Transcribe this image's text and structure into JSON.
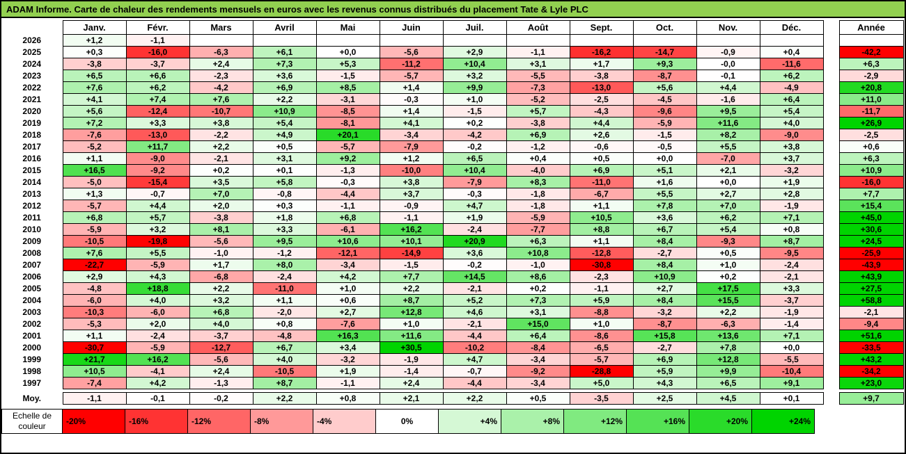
{
  "title": "ADAM Informe. Carte de chaleur des rendements mensuels en euros avec les revenus connus distribués du placement Tate & Lyle PLC",
  "colors": {
    "title_background": "#92d050",
    "scale_negative": "#ff0000",
    "scale_zero": "#ffffff",
    "scale_positive": "#00d400",
    "border": "#000000"
  },
  "chart_data": {
    "type": "heatmap",
    "title": "ADAM Informe. Carte de chaleur des rendements mensuels en euros avec les revenus connus distribués du placement Tate & Lyle PLC",
    "columns": [
      "Janv.",
      "Févr.",
      "Mars",
      "Avril",
      "Mai",
      "Juin",
      "Juil.",
      "Août",
      "Sept.",
      "Oct.",
      "Nov.",
      "Déc."
    ],
    "annual_header": "Année",
    "value_format": "signed, one decimal, comma separator, percent returns",
    "rows": [
      {
        "label": "2026",
        "cells": [
          "+1,2",
          "-1,1",
          "",
          "",
          "",
          "",
          "",
          "",
          "",
          "",
          "",
          ""
        ],
        "annual": ""
      },
      {
        "label": "2025",
        "cells": [
          "+0,3",
          "-16,0",
          "-6,3",
          "+6,1",
          "+0,0",
          "-5,6",
          "+2,9",
          "-1,1",
          "-16,2",
          "-14,7",
          "-0,9",
          "+0,4"
        ],
        "annual": "-42,2"
      },
      {
        "label": "2024",
        "cells": [
          "-3,8",
          "-3,7",
          "+2,4",
          "+7,3",
          "+5,3",
          "-11,2",
          "+10,4",
          "+3,1",
          "+1,7",
          "+9,3",
          "-0,0",
          "-11,6"
        ],
        "annual": "+6,3"
      },
      {
        "label": "2023",
        "cells": [
          "+6,5",
          "+6,6",
          "-2,3",
          "+3,6",
          "-1,5",
          "-5,7",
          "+3,2",
          "-5,5",
          "-3,8",
          "-8,7",
          "-0,1",
          "+6,2"
        ],
        "annual": "-2,9"
      },
      {
        "label": "2022",
        "cells": [
          "+7,6",
          "+6,2",
          "-4,2",
          "+6,9",
          "+8,5",
          "+1,4",
          "+9,9",
          "-7,3",
          "-13,0",
          "+5,6",
          "+4,4",
          "-4,9"
        ],
        "annual": "+20,8"
      },
      {
        "label": "2021",
        "cells": [
          "+4,1",
          "+7,4",
          "+7,6",
          "+2,2",
          "-3,1",
          "-0,3",
          "+1,0",
          "-5,2",
          "-2,5",
          "-4,5",
          "-1,6",
          "+6,4"
        ],
        "annual": "+11,0"
      },
      {
        "label": "2020",
        "cells": [
          "+5,6",
          "-12,4",
          "-10,7",
          "+10,9",
          "-8,5",
          "+1,4",
          "-1,5",
          "+5,7",
          "-4,3",
          "-9,6",
          "+9,5",
          "+5,4"
        ],
        "annual": "-11,7"
      },
      {
        "label": "2019",
        "cells": [
          "+7,2",
          "+3,3",
          "+3,8",
          "+5,4",
          "-8,1",
          "+4,1",
          "+0,2",
          "-3,8",
          "+4,4",
          "-5,9",
          "+11,6",
          "+4,0"
        ],
        "annual": "+26,9"
      },
      {
        "label": "2018",
        "cells": [
          "-7,6",
          "-13,0",
          "-2,2",
          "+4,9",
          "+20,1",
          "-3,4",
          "-4,2",
          "+6,9",
          "+2,6",
          "-1,5",
          "+8,2",
          "-9,0"
        ],
        "annual": "-2,5"
      },
      {
        "label": "2017",
        "cells": [
          "-5,2",
          "+11,7",
          "+2,2",
          "+0,5",
          "-5,7",
          "-7,9",
          "-0,2",
          "-1,2",
          "-0,6",
          "-0,5",
          "+5,5",
          "+3,8"
        ],
        "annual": "+0,6"
      },
      {
        "label": "2016",
        "cells": [
          "+1,1",
          "-9,0",
          "-2,1",
          "+3,1",
          "+9,2",
          "+1,2",
          "+6,5",
          "+0,4",
          "+0,5",
          "+0,0",
          "-7,0",
          "+3,7"
        ],
        "annual": "+6,3"
      },
      {
        "label": "2015",
        "cells": [
          "+16,5",
          "-9,2",
          "+0,2",
          "+0,1",
          "-1,3",
          "-10,0",
          "+10,4",
          "-4,0",
          "+6,9",
          "+5,1",
          "+2,1",
          "-3,2"
        ],
        "annual": "+10,9"
      },
      {
        "label": "2014",
        "cells": [
          "-5,0",
          "-15,4",
          "+3,5",
          "+5,8",
          "-0,3",
          "+3,8",
          "-7,9",
          "+8,3",
          "-11,0",
          "+1,6",
          "+0,0",
          "+1,9"
        ],
        "annual": "-16,0"
      },
      {
        "label": "2013",
        "cells": [
          "+1,3",
          "-0,7",
          "+7,0",
          "-0,8",
          "-4,4",
          "+3,7",
          "-0,3",
          "-1,8",
          "-6,7",
          "+5,5",
          "+2,7",
          "+2,8"
        ],
        "annual": "+7,7"
      },
      {
        "label": "2012",
        "cells": [
          "-5,7",
          "+4,4",
          "+2,0",
          "+0,3",
          "-1,1",
          "-0,9",
          "+4,7",
          "-1,8",
          "+1,1",
          "+7,8",
          "+7,0",
          "-1,9"
        ],
        "annual": "+15,4"
      },
      {
        "label": "2011",
        "cells": [
          "+6,8",
          "+5,7",
          "-3,8",
          "+1,8",
          "+6,8",
          "-1,1",
          "+1,9",
          "-5,9",
          "+10,5",
          "+3,6",
          "+6,2",
          "+7,1"
        ],
        "annual": "+45,0"
      },
      {
        "label": "2010",
        "cells": [
          "-5,9",
          "+3,2",
          "+8,1",
          "+3,3",
          "-6,1",
          "+16,2",
          "-2,4",
          "-7,7",
          "+8,8",
          "+6,7",
          "+5,4",
          "+0,8"
        ],
        "annual": "+30,6"
      },
      {
        "label": "2009",
        "cells": [
          "-10,5",
          "-19,8",
          "-5,6",
          "+9,5",
          "+10,6",
          "+10,1",
          "+20,9",
          "+6,3",
          "+1,1",
          "+8,4",
          "-9,3",
          "+8,7"
        ],
        "annual": "+24,5"
      },
      {
        "label": "2008",
        "cells": [
          "+7,6",
          "+5,5",
          "-1,0",
          "-1,2",
          "-12,1",
          "-14,9",
          "+3,6",
          "+10,8",
          "-12,8",
          "-2,7",
          "+0,5",
          "-9,5"
        ],
        "annual": "-25,9"
      },
      {
        "label": "2007",
        "cells": [
          "-22,7",
          "-5,9",
          "+1,7",
          "+8,0",
          "-3,4",
          "-1,5",
          "-0,2",
          "-1,0",
          "-30,8",
          "+8,4",
          "+1,0",
          "-2,4"
        ],
        "annual": "-43,9"
      },
      {
        "label": "2006",
        "cells": [
          "+2,9",
          "+4,3",
          "-6,8",
          "-2,4",
          "+4,2",
          "+7,7",
          "+14,5",
          "+8,6",
          "-2,3",
          "+10,9",
          "+0,2",
          "-2,1"
        ],
        "annual": "+43,9"
      },
      {
        "label": "2005",
        "cells": [
          "-4,8",
          "+18,8",
          "+2,2",
          "-11,0",
          "+1,0",
          "+2,2",
          "-2,1",
          "+0,2",
          "-1,1",
          "+2,7",
          "+17,5",
          "+3,3"
        ],
        "annual": "+27,5"
      },
      {
        "label": "2004",
        "cells": [
          "-6,0",
          "+4,0",
          "+3,2",
          "+1,1",
          "+0,6",
          "+8,7",
          "+5,2",
          "+7,3",
          "+5,9",
          "+8,4",
          "+15,5",
          "-3,7"
        ],
        "annual": "+58,8"
      },
      {
        "label": "2003",
        "cells": [
          "-10,3",
          "-6,0",
          "+6,8",
          "-2,0",
          "+2,7",
          "+12,8",
          "+4,6",
          "+3,1",
          "-8,8",
          "-3,2",
          "+2,2",
          "-1,9"
        ],
        "annual": "-2,1"
      },
      {
        "label": "2002",
        "cells": [
          "-5,3",
          "+2,0",
          "+4,0",
          "+0,8",
          "-7,6",
          "+1,0",
          "-2,1",
          "+15,0",
          "+1,0",
          "-8,7",
          "-6,3",
          "-1,4"
        ],
        "annual": "-9,4"
      },
      {
        "label": "2001",
        "cells": [
          "+1,1",
          "-2,4",
          "-3,7",
          "-4,8",
          "+16,3",
          "+11,6",
          "-4,4",
          "+6,4",
          "-8,6",
          "+15,8",
          "+13,6",
          "+7,1"
        ],
        "annual": "+51,6"
      },
      {
        "label": "2000",
        "cells": [
          "-30,7",
          "-5,9",
          "-12,7",
          "+6,7",
          "+3,4",
          "+30,5",
          "-10,2",
          "-8,4",
          "-6,5",
          "-2,7",
          "+7,8",
          "+0,0"
        ],
        "annual": "-33,5"
      },
      {
        "label": "1999",
        "cells": [
          "+21,7",
          "+16,2",
          "-5,6",
          "+4,0",
          "-3,2",
          "-1,9",
          "+4,7",
          "-3,4",
          "-5,7",
          "+6,9",
          "+12,8",
          "-5,5"
        ],
        "annual": "+43,2"
      },
      {
        "label": "1998",
        "cells": [
          "+10,5",
          "-4,1",
          "+2,4",
          "-10,5",
          "+1,9",
          "-1,4",
          "-0,7",
          "-9,2",
          "-28,8",
          "+5,9",
          "+9,9",
          "-10,4"
        ],
        "annual": "-34,2"
      },
      {
        "label": "1997",
        "cells": [
          "-7,4",
          "+4,2",
          "-1,3",
          "+8,7",
          "-1,1",
          "+2,4",
          "-4,4",
          "-3,4",
          "+5,0",
          "+4,3",
          "+6,5",
          "+9,1"
        ],
        "annual": "+23,0"
      },
      {
        "label": "Moy.",
        "cells": [
          "-1,1",
          "-0,1",
          "-0,2",
          "+2,2",
          "+0,8",
          "+2,1",
          "+2,2",
          "+0,5",
          "-3,5",
          "+2,5",
          "+4,5",
          "+0,1"
        ],
        "annual": "+9,7"
      }
    ],
    "colorscale": {
      "legend_label": "Echelle de couleur",
      "legend_stops": [
        "-20%",
        "-16%",
        "-12%",
        "-8%",
        "-4%",
        "0%",
        "+4%",
        "+8%",
        "+12%",
        "+16%",
        "+20%",
        "+24%"
      ],
      "legend_values": [
        -20,
        -16,
        -12,
        -8,
        -4,
        0,
        4,
        8,
        12,
        16,
        20,
        24
      ],
      "domain": [
        -20,
        24
      ]
    }
  }
}
